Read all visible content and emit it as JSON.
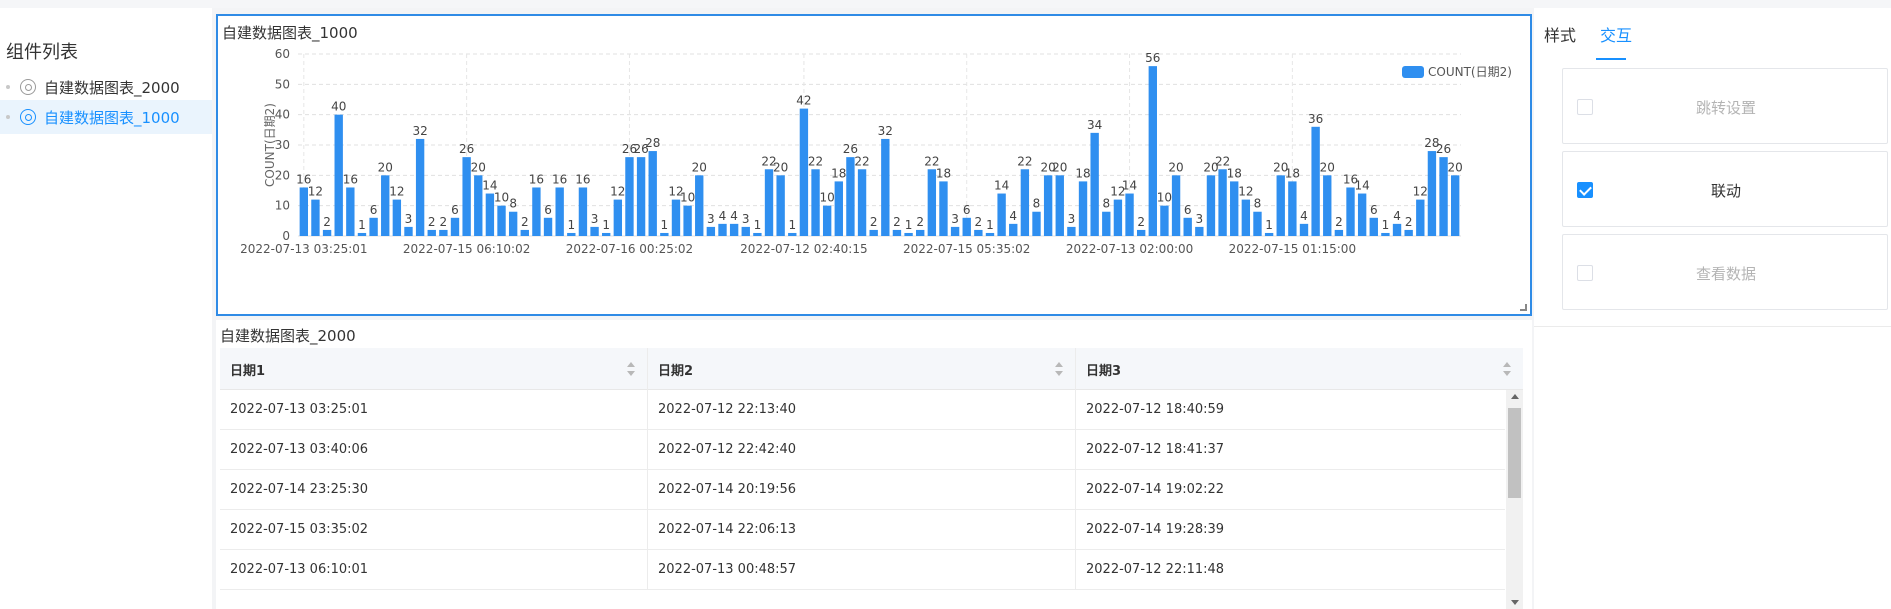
{
  "left_panel": {
    "title": "组件列表",
    "items": [
      {
        "label": "自建数据图表_2000",
        "active": false
      },
      {
        "label": "自建数据图表_1000",
        "active": true
      }
    ]
  },
  "chart_card": {
    "title": "自建数据图表_1000"
  },
  "chart_data": {
    "type": "bar",
    "ylabel": "COUNT(日期2)",
    "xlabel": "",
    "ylim": [
      0,
      60
    ],
    "yticks": [
      0,
      10,
      20,
      30,
      40,
      50,
      60
    ],
    "grid": true,
    "legend_position": "top-right",
    "color": "#2f8ff0",
    "x_tick_labels": [
      "2022-07-13 03:25:01",
      "2022-07-15 06:10:02",
      "2022-07-16 00:25:02",
      "2022-07-12 02:40:15",
      "2022-07-15 05:35:02",
      "2022-07-13 02:00:00",
      "2022-07-15 01:15:00"
    ],
    "series": [
      {
        "name": "COUNT(日期2)",
        "values": [
          16,
          12,
          2,
          40,
          16,
          1,
          6,
          20,
          12,
          3,
          32,
          2,
          2,
          6,
          26,
          20,
          14,
          10,
          8,
          2,
          16,
          6,
          16,
          1,
          16,
          3,
          1,
          12,
          26,
          26,
          28,
          1,
          12,
          10,
          20,
          3,
          4,
          4,
          3,
          1,
          22,
          20,
          1,
          42,
          22,
          10,
          18,
          26,
          22,
          2,
          32,
          2,
          1,
          2,
          22,
          18,
          3,
          6,
          2,
          1,
          14,
          4,
          22,
          8,
          20,
          20,
          3,
          18,
          34,
          8,
          12,
          14,
          2,
          56,
          10,
          20,
          6,
          3,
          20,
          22,
          18,
          12,
          8,
          1,
          20,
          18,
          4,
          36,
          20,
          2,
          16,
          14,
          6,
          1,
          4,
          2,
          12,
          28,
          26,
          20
        ]
      }
    ]
  },
  "table": {
    "title": "自建数据图表_2000",
    "columns": [
      "日期1",
      "日期2",
      "日期3"
    ],
    "rows": [
      [
        "2022-07-13 03:25:01",
        "2022-07-12 22:13:40",
        "2022-07-12 18:40:59"
      ],
      [
        "2022-07-13 03:40:06",
        "2022-07-12 22:42:40",
        "2022-07-12 18:41:37"
      ],
      [
        "2022-07-14 23:25:30",
        "2022-07-14 20:19:56",
        "2022-07-14 19:02:22"
      ],
      [
        "2022-07-15 03:35:02",
        "2022-07-14 22:06:13",
        "2022-07-14 19:28:39"
      ],
      [
        "2022-07-13 06:10:01",
        "2022-07-13 00:48:57",
        "2022-07-12 22:11:48"
      ]
    ]
  },
  "right_panel": {
    "tabs": [
      {
        "label": "样式",
        "active": false
      },
      {
        "label": "交互",
        "active": true
      }
    ],
    "options": [
      {
        "label": "跳转设置",
        "checked": false,
        "disabled": true
      },
      {
        "label": "联动",
        "checked": true,
        "disabled": false
      },
      {
        "label": "查看数据",
        "checked": false,
        "disabled": true
      }
    ]
  }
}
